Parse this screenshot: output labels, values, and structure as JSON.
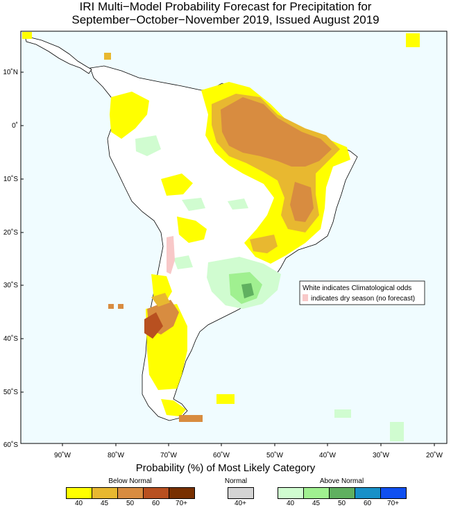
{
  "title": {
    "line1": "IRI Multi−Model Probability Forecast for Precipitation for",
    "line2": "September−October−November 2019, Issued August 2019"
  },
  "map": {
    "lat_labels": [
      "10˚N",
      "0˚",
      "10˚S",
      "20˚S",
      "30˚S",
      "40˚S",
      "50˚S",
      "60˚S"
    ],
    "lon_labels": [
      "90˚W",
      "80˚W",
      "70˚W",
      "60˚W",
      "50˚W",
      "40˚W",
      "30˚W",
      "20˚W"
    ],
    "ocean_color": "#f0fcff",
    "land_color": "#ffffff",
    "note_line1": "White indicates Climatological odds",
    "note_line2": "indicates dry season (no forecast)",
    "dry_season_color": "#f8c8c8"
  },
  "legend": {
    "title": "Probability (%) of Most Likely Category",
    "below": {
      "label": "Below Normal",
      "colors": [
        "#ffff00",
        "#e8b830",
        "#d88c40",
        "#b85020",
        "#783000"
      ],
      "ticks": [
        "40",
        "45",
        "50",
        "60",
        "70+"
      ]
    },
    "normal": {
      "label": "Normal",
      "colors": [
        "#d4d4d4"
      ],
      "ticks": [
        "40+"
      ]
    },
    "above": {
      "label": "Above Normal",
      "colors": [
        "#d0fcd0",
        "#a0f090",
        "#60b060",
        "#1890c8",
        "#1050f0"
      ],
      "ticks": [
        "40",
        "45",
        "50",
        "60",
        "70+"
      ]
    }
  }
}
